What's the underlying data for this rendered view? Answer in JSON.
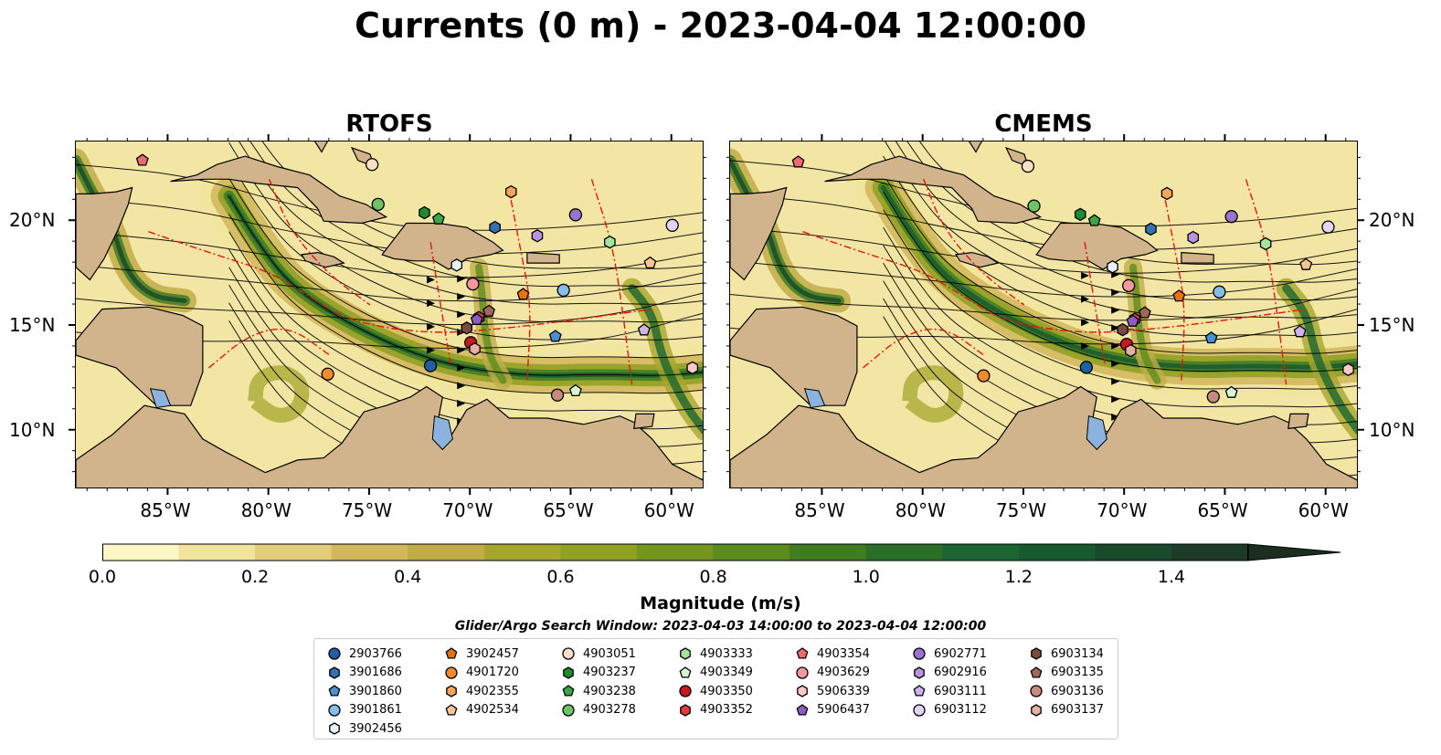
{
  "title": "Currents (0 m) - 2023-04-04 12:00:00",
  "chart_data": {
    "type": "heatmap",
    "panels": [
      {
        "title": "RTOFS"
      },
      {
        "title": "CMEMS"
      }
    ],
    "x_ticks": [
      "85°W",
      "80°W",
      "75°W",
      "70°W",
      "65°W",
      "60°W"
    ],
    "x_tick_values": [
      -85,
      -80,
      -75,
      -70,
      -65,
      -60
    ],
    "y_ticks": [
      "20°N",
      "15°N",
      "10°N"
    ],
    "y_tick_values": [
      20,
      15,
      10
    ],
    "xlim": [
      -89.6,
      -58.4
    ],
    "ylim": [
      7.2,
      23.8
    ],
    "colorbar": {
      "label": "Magnitude (m/s)",
      "ticks": [
        "0.0",
        "0.2",
        "0.4",
        "0.6",
        "0.8",
        "1.0",
        "1.2",
        "1.4"
      ],
      "tick_values": [
        0.0,
        0.2,
        0.4,
        0.6,
        0.8,
        1.0,
        1.2,
        1.4
      ],
      "range": [
        0.0,
        1.5
      ],
      "extend": "max",
      "colors": [
        "#fdf7c6",
        "#f1e49d",
        "#e1cd7a",
        "#d2b75c",
        "#c1ac48",
        "#a6a52e",
        "#8fa023",
        "#73961d",
        "#5c8c1e",
        "#3f7d21",
        "#2a6e28",
        "#1c6530",
        "#175a30",
        "#1a4a2c",
        "#1d3b26",
        "#1c2e1f"
      ]
    },
    "search_window": "Glider/Argo Search Window: 2023-04-03 14:00:00 to 2023-04-04 12:00:00",
    "land_color": "#d2b48c",
    "ocean_color": "#f3e6a4",
    "boundary_color": "#e8140c",
    "legend": [
      {
        "name": "2903766",
        "marker": "circle",
        "color": "#1f5fa3"
      },
      {
        "name": "3901686",
        "marker": "hexagon",
        "color": "#3572b0"
      },
      {
        "name": "3901860",
        "marker": "pentagon",
        "color": "#4a8fd1"
      },
      {
        "name": "3901861",
        "marker": "circle",
        "color": "#86bde8"
      },
      {
        "name": "3902456",
        "marker": "hexagon",
        "color": "#e4f1fb"
      },
      {
        "name": "3902457",
        "marker": "pentagon",
        "color": "#e8720c"
      },
      {
        "name": "4901720",
        "marker": "circle",
        "color": "#f08a2a"
      },
      {
        "name": "4902355",
        "marker": "hexagon",
        "color": "#f6a55a"
      },
      {
        "name": "4902534",
        "marker": "pentagon",
        "color": "#f7c58e"
      },
      {
        "name": "4903051",
        "marker": "circle",
        "color": "#fbe0c6"
      },
      {
        "name": "4903237",
        "marker": "hexagon",
        "color": "#1f8a2e"
      },
      {
        "name": "4903238",
        "marker": "pentagon",
        "color": "#3aa645"
      },
      {
        "name": "4903278",
        "marker": "circle",
        "color": "#6cc466"
      },
      {
        "name": "4903333",
        "marker": "hexagon",
        "color": "#a5e39b"
      },
      {
        "name": "4903349",
        "marker": "pentagon",
        "color": "#d7f5cf"
      },
      {
        "name": "4903350",
        "marker": "circle",
        "color": "#c8191e"
      },
      {
        "name": "4903352",
        "marker": "hexagon",
        "color": "#e23c3c"
      },
      {
        "name": "4903354",
        "marker": "pentagon",
        "color": "#f06b70"
      },
      {
        "name": "4903629",
        "marker": "circle",
        "color": "#f4989b"
      },
      {
        "name": "5906339",
        "marker": "hexagon",
        "color": "#fac9c8"
      },
      {
        "name": "5906437",
        "marker": "pentagon",
        "color": "#8c5cc4"
      },
      {
        "name": "6902771",
        "marker": "circle",
        "color": "#9b72cf"
      },
      {
        "name": "6902916",
        "marker": "hexagon",
        "color": "#b595e0"
      },
      {
        "name": "6903111",
        "marker": "pentagon",
        "color": "#cdb4ee"
      },
      {
        "name": "6903112",
        "marker": "circle",
        "color": "#e3d4f7"
      },
      {
        "name": "6903134",
        "marker": "hexagon",
        "color": "#7a4a3e"
      },
      {
        "name": "6903135",
        "marker": "pentagon",
        "color": "#a06856"
      },
      {
        "name": "6903136",
        "marker": "circle",
        "color": "#c68b7c"
      },
      {
        "name": "6903137",
        "marker": "hexagon",
        "color": "#e6b0a3"
      }
    ],
    "floats": {
      "2903766": [
        -72.0,
        13.1
      ],
      "3901686": [
        -68.8,
        19.7
      ],
      "3901860": [
        -65.8,
        14.5
      ],
      "3901861": [
        -65.4,
        16.7
      ],
      "3902456": [
        -70.7,
        17.9
      ],
      "3902457": [
        -67.4,
        16.5
      ],
      "4901720": [
        -77.1,
        12.7
      ],
      "4902355": [
        -68.0,
        21.4
      ],
      "4902534": [
        -61.1,
        18.0
      ],
      "4903051": [
        -74.9,
        22.7
      ],
      "4903237": [
        -72.3,
        20.4
      ],
      "4903238": [
        -71.6,
        20.1
      ],
      "4903278": [
        -74.6,
        20.8
      ],
      "4903333": [
        -63.1,
        19.0
      ],
      "4903349": [
        -64.8,
        11.9
      ],
      "4903350": [
        -70.0,
        14.2
      ],
      "4903352": [
        -69.6,
        15.4
      ],
      "4903354": [
        -86.3,
        22.9
      ],
      "4903629": [
        -69.9,
        17.0
      ],
      "5906339": [
        -59.0,
        13.0
      ],
      "5906437": [
        -69.7,
        15.3
      ],
      "6902771": [
        -64.8,
        20.3
      ],
      "6902916": [
        -66.7,
        19.3
      ],
      "6903111": [
        -61.4,
        14.8
      ],
      "6903112": [
        -60.0,
        19.8
      ],
      "6903134": [
        -70.2,
        14.9
      ],
      "6903135": [
        -69.1,
        15.7
      ],
      "6903136": [
        -65.7,
        11.7
      ],
      "6903137": [
        -69.8,
        13.9
      ]
    }
  }
}
